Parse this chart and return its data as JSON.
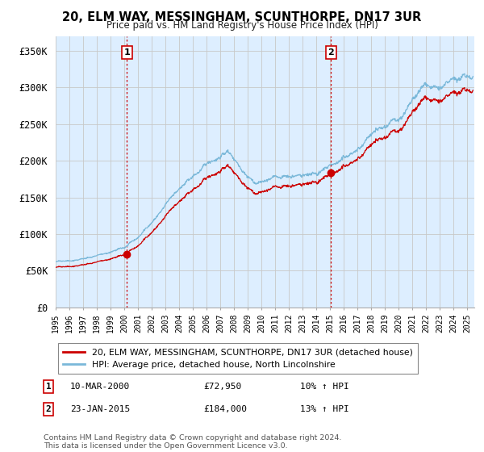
{
  "title": "20, ELM WAY, MESSINGHAM, SCUNTHORPE, DN17 3UR",
  "subtitle": "Price paid vs. HM Land Registry's House Price Index (HPI)",
  "ylabel_ticks": [
    "£0",
    "£50K",
    "£100K",
    "£150K",
    "£200K",
    "£250K",
    "£300K",
    "£350K"
  ],
  "ytick_values": [
    0,
    50000,
    100000,
    150000,
    200000,
    250000,
    300000,
    350000
  ],
  "ylim": [
    0,
    370000
  ],
  "xlim_start": 1995,
  "xlim_end": 2025.5,
  "sale1_x": 2000.19,
  "sale1_y": 72950,
  "sale1_label": "1",
  "sale1_date": "10-MAR-2000",
  "sale1_price": "£72,950",
  "sale1_hpi": "10% ↑ HPI",
  "sale2_x": 2015.06,
  "sale2_y": 184000,
  "sale2_label": "2",
  "sale2_date": "23-JAN-2015",
  "sale2_price": "£184,000",
  "sale2_hpi": "13% ↑ HPI",
  "hpi_line_color": "#7ab8d9",
  "price_line_color": "#cc0000",
  "sale_dot_color": "#cc0000",
  "vline_color": "#cc0000",
  "grid_color": "#c8c8c8",
  "plot_bg_color": "#ddeeff",
  "background_color": "#ffffff",
  "legend_label_price": "20, ELM WAY, MESSINGHAM, SCUNTHORPE, DN17 3UR (detached house)",
  "legend_label_hpi": "HPI: Average price, detached house, North Lincolnshire",
  "footnote": "Contains HM Land Registry data © Crown copyright and database right 2024.\nThis data is licensed under the Open Government Licence v3.0."
}
